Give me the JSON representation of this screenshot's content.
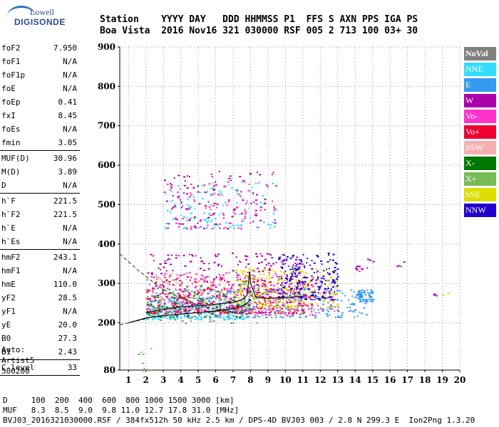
{
  "logo": {
    "line1": "Lowell",
    "line2": "DIGISONDE"
  },
  "header": {
    "line1": "Station    YYYY DAY   DDD HHMMSS P1  FFS S AXN PPS IGA PS",
    "line2": "Boa Vista  2016 Nov16 321 030000 RSF 005 2 713 100 03+ 30"
  },
  "params": {
    "group1": [
      {
        "k": "foF2",
        "v": "7.950"
      },
      {
        "k": "foF1",
        "v": "N/A"
      },
      {
        "k": "foF1p",
        "v": "N/A"
      },
      {
        "k": "foE",
        "v": "N/A"
      },
      {
        "k": "foEp",
        "v": "0.41"
      },
      {
        "k": "fxI",
        "v": "8.45"
      },
      {
        "k": "foEs",
        "v": "N/A"
      },
      {
        "k": "fmin",
        "v": "3.05"
      }
    ],
    "group2": [
      {
        "k": "MUF(D)",
        "v": "30.96"
      },
      {
        "k": "M(D)",
        "v": "3.89"
      },
      {
        "k": "D",
        "v": "N/A"
      }
    ],
    "group3": [
      {
        "k": "h`F",
        "v": "221.5"
      },
      {
        "k": "h`F2",
        "v": "221.5"
      },
      {
        "k": "h`E",
        "v": "N/A"
      },
      {
        "k": "h`Es",
        "v": "N/A"
      }
    ],
    "group4": [
      {
        "k": "hmF2",
        "v": "243.1"
      },
      {
        "k": "hmF1",
        "v": "N/A"
      },
      {
        "k": "hmE",
        "v": "110.0"
      },
      {
        "k": "yF2",
        "v": "28.5"
      },
      {
        "k": "yF1",
        "v": "N/A"
      },
      {
        "k": "yE",
        "v": "20.0"
      },
      {
        "k": "B0",
        "v": "27.3"
      },
      {
        "k": "B1",
        "v": "2.43"
      }
    ],
    "group5": [
      {
        "k": "C-level",
        "v": "33"
      }
    ]
  },
  "auto": {
    "line1": "Auto:",
    "line2": "Artist5",
    "line3": "500200"
  },
  "legend": [
    {
      "label": "NoVal",
      "color": "#808080"
    },
    {
      "label": "NNE",
      "color": "#33ddff"
    },
    {
      "label": "E",
      "color": "#3399ee"
    },
    {
      "label": "W",
      "color": "#aa00aa"
    },
    {
      "label": "Vo-",
      "color": "#ff33cc"
    },
    {
      "label": "Vo+",
      "color": "#ee0033"
    },
    {
      "label": "SSW",
      "color": "#f4b0b0"
    },
    {
      "label": "X-",
      "color": "#007700"
    },
    {
      "label": "X+",
      "color": "#77bb55"
    },
    {
      "label": "SSE",
      "color": "#dddd00"
    },
    {
      "label": "NNW",
      "color": "#2200cc"
    }
  ],
  "footer": {
    "line1": "D     100  200  400  600  800 1000 1500 3000 [km]",
    "line2": "MUF   8.3  8.5  9.0  9.8 11.0 12.7 17.8 31.0 [MHz]",
    "line3": "BVJ03_2016321030000.RSF / 384fx512h 50 kHz 2.5 km / DPS-4D BVJ03 003 / 2.8 N 299.3 E  Ion2Png 1.3.20"
  },
  "chart_data": {
    "type": "scatter",
    "xlim": [
      0.5,
      20
    ],
    "ylim": [
      80,
      900
    ],
    "xticks": [
      "1",
      "2",
      "3",
      "4",
      "5",
      "6",
      "7",
      "8",
      "9",
      "10",
      "11",
      "12",
      "13",
      "14",
      "15",
      "16",
      "17",
      "18",
      "19",
      "20"
    ],
    "yticks": [
      "80",
      "200",
      "300",
      "400",
      "500",
      "600",
      "700",
      "800",
      "900"
    ],
    "grid": true,
    "xlabel": "",
    "ylabel": "",
    "trace_curve": [
      [
        1.0,
        200
      ],
      [
        2.0,
        212
      ],
      [
        3.0,
        218
      ],
      [
        4.0,
        222
      ],
      [
        5.0,
        226
      ],
      [
        6.0,
        230
      ],
      [
        7.0,
        236
      ],
      [
        7.5,
        242
      ],
      [
        7.8,
        250
      ],
      [
        8.0,
        260
      ]
    ],
    "dashed_lower": [
      [
        0.5,
        195
      ],
      [
        1.0,
        200
      ],
      [
        1.5,
        205
      ],
      [
        2.0,
        210
      ]
    ],
    "dashed_upper": [
      [
        0.5,
        375
      ],
      [
        1.0,
        355
      ],
      [
        1.5,
        335
      ],
      [
        2.0,
        318
      ],
      [
        2.5,
        300
      ],
      [
        3.0,
        285
      ],
      [
        4.0,
        262
      ],
      [
        5.0,
        245
      ],
      [
        6.0,
        235
      ],
      [
        7.0,
        228
      ],
      [
        8.0,
        222
      ]
    ],
    "virtual_height_trace": [
      [
        2.0,
        225
      ],
      [
        3.0,
        235
      ],
      [
        4.0,
        240
      ],
      [
        5.0,
        243
      ],
      [
        6.0,
        247
      ],
      [
        7.0,
        252
      ],
      [
        7.5,
        258
      ],
      [
        7.8,
        270
      ],
      [
        7.95,
        330
      ],
      [
        8.0,
        300
      ],
      [
        8.3,
        265
      ],
      [
        9.0,
        262
      ],
      [
        10.0,
        264
      ],
      [
        11.0,
        268
      ]
    ],
    "clusters": [
      {
        "dir": "NoVal",
        "x": [
          2.0,
          8.5
        ],
        "y": [
          200,
          330
        ],
        "n": 80
      },
      {
        "dir": "NNE",
        "x": [
          2.0,
          8.0
        ],
        "y": [
          210,
          265
        ],
        "n": 260
      },
      {
        "dir": "E",
        "x": [
          2.0,
          14.6
        ],
        "y": [
          215,
          290
        ],
        "n": 300
      },
      {
        "dir": "W",
        "x": [
          2.0,
          11.0
        ],
        "y": [
          225,
          380
        ],
        "n": 280
      },
      {
        "dir": "Vo-",
        "x": [
          2.0,
          13.0
        ],
        "y": [
          220,
          330
        ],
        "n": 260
      },
      {
        "dir": "Vo+",
        "x": [
          2.0,
          11.5
        ],
        "y": [
          225,
          320
        ],
        "n": 300
      },
      {
        "dir": "SSW",
        "x": [
          2.5,
          11.0
        ],
        "y": [
          230,
          330
        ],
        "n": 150
      },
      {
        "dir": "X-",
        "x": [
          2.0,
          8.0
        ],
        "y": [
          215,
          290
        ],
        "n": 80
      },
      {
        "dir": "X+",
        "x": [
          2.0,
          11.0
        ],
        "y": [
          220,
          320
        ],
        "n": 90
      },
      {
        "dir": "SSE",
        "x": [
          7.0,
          13.0
        ],
        "y": [
          240,
          340
        ],
        "n": 220
      },
      {
        "dir": "NNW",
        "x": [
          9.5,
          13.0
        ],
        "y": [
          260,
          380
        ],
        "n": 200
      },
      {
        "dir": "NNE",
        "x": [
          3.0,
          9.5
        ],
        "y": [
          440,
          560
        ],
        "n": 120
      },
      {
        "dir": "W",
        "x": [
          3.0,
          9.5
        ],
        "y": [
          440,
          590
        ],
        "n": 110
      },
      {
        "dir": "Vo-",
        "x": [
          3.0,
          9.5
        ],
        "y": [
          440,
          560
        ],
        "n": 80
      },
      {
        "dir": "E",
        "x": [
          14.0,
          15.0
        ],
        "y": [
          255,
          285
        ],
        "n": 60
      },
      {
        "dir": "W",
        "x": [
          14.0,
          15.0
        ],
        "y": [
          330,
          365
        ],
        "n": 12
      },
      {
        "dir": "W",
        "x": [
          16.0,
          16.8
        ],
        "y": [
          345,
          360
        ],
        "n": 4
      },
      {
        "dir": "W",
        "x": [
          18.4,
          18.8
        ],
        "y": [
          270,
          280
        ],
        "n": 4
      },
      {
        "dir": "SSE",
        "x": [
          18.8,
          19.3
        ],
        "y": [
          270,
          280
        ],
        "n": 3
      },
      {
        "dir": "X+",
        "x": [
          1.5,
          2.5
        ],
        "y": [
          80,
          140
        ],
        "n": 10
      }
    ]
  }
}
